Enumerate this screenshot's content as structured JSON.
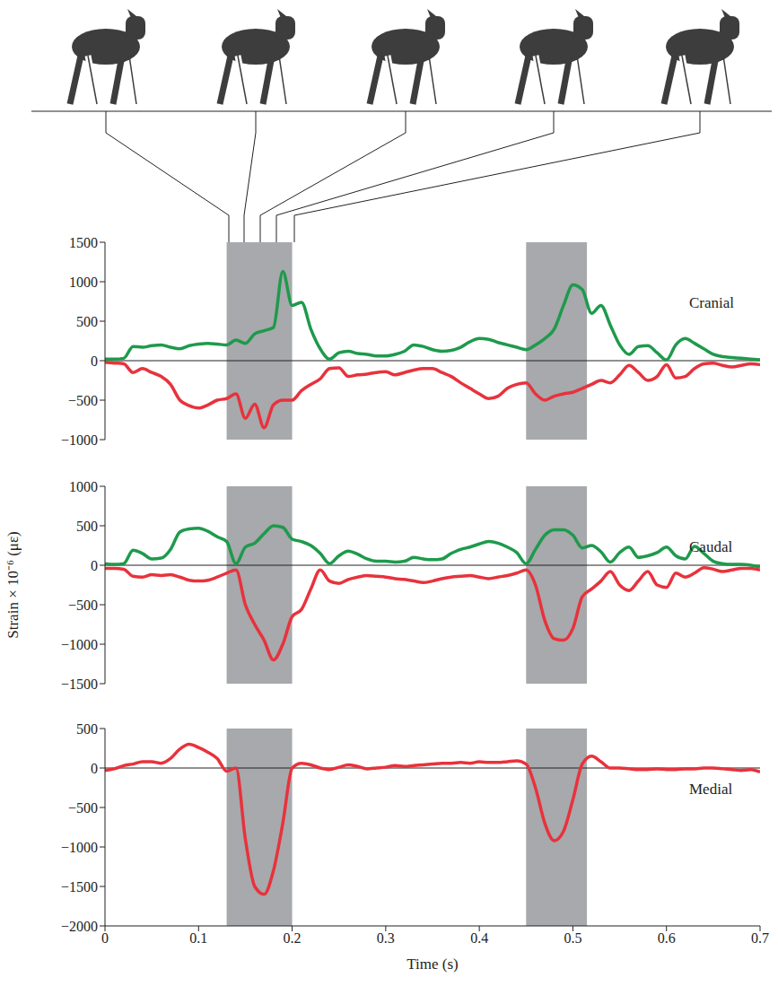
{
  "chart_data": [
    {
      "type": "line",
      "title": "Cranial",
      "baseline": 0,
      "xlim": [
        0,
        0.7
      ],
      "xticks": [
        0,
        0.1,
        0.2,
        0.3,
        0.4,
        0.5,
        0.6,
        0.7
      ],
      "ylim": [
        -1000,
        1500
      ],
      "yticks": [
        -1000,
        -500,
        0,
        500,
        1000,
        1500
      ],
      "tick_labels": "y",
      "shaded_regions": [
        [
          0.13,
          0.2
        ],
        [
          0.45,
          0.515
        ]
      ],
      "x": [
        0,
        0.01,
        0.02,
        0.03,
        0.04,
        0.05,
        0.06,
        0.07,
        0.08,
        0.09,
        0.1,
        0.11,
        0.12,
        0.13,
        0.14,
        0.15,
        0.16,
        0.17,
        0.18,
        0.19,
        0.2,
        0.21,
        0.22,
        0.23,
        0.24,
        0.25,
        0.26,
        0.27,
        0.28,
        0.29,
        0.3,
        0.31,
        0.32,
        0.33,
        0.34,
        0.35,
        0.36,
        0.37,
        0.38,
        0.39,
        0.4,
        0.41,
        0.42,
        0.43,
        0.44,
        0.45,
        0.46,
        0.47,
        0.48,
        0.49,
        0.5,
        0.51,
        0.52,
        0.53,
        0.54,
        0.55,
        0.56,
        0.57,
        0.58,
        0.59,
        0.6,
        0.61,
        0.62,
        0.63,
        0.64,
        0.65,
        0.66,
        0.67,
        0.68,
        0.69,
        0.7
      ],
      "series": [
        {
          "color": "#1e9a4c",
          "values": [
            20,
            20,
            30,
            180,
            170,
            190,
            200,
            170,
            150,
            190,
            210,
            220,
            210,
            200,
            260,
            220,
            340,
            380,
            420,
            1130,
            700,
            740,
            400,
            150,
            20,
            100,
            120,
            90,
            80,
            60,
            60,
            80,
            120,
            200,
            180,
            140,
            120,
            130,
            170,
            240,
            280,
            270,
            230,
            200,
            170,
            140,
            200,
            280,
            400,
            700,
            960,
            900,
            600,
            700,
            450,
            200,
            80,
            180,
            190,
            100,
            10,
            200,
            280,
            220,
            150,
            80,
            50,
            40,
            30,
            20,
            10
          ]
        },
        {
          "color": "#e8323c",
          "values": [
            -20,
            -30,
            -40,
            -150,
            -100,
            -150,
            -200,
            -300,
            -500,
            -570,
            -600,
            -560,
            -500,
            -480,
            -420,
            -730,
            -550,
            -850,
            -560,
            -500,
            -500,
            -380,
            -300,
            -230,
            -100,
            -90,
            -200,
            -180,
            -170,
            -150,
            -140,
            -180,
            -150,
            -120,
            -100,
            -100,
            -150,
            -200,
            -280,
            -350,
            -420,
            -480,
            -450,
            -350,
            -300,
            -280,
            -420,
            -500,
            -450,
            -420,
            -400,
            -350,
            -300,
            -250,
            -280,
            -180,
            -60,
            -150,
            -250,
            -200,
            -50,
            -220,
            -200,
            -100,
            -40,
            -30,
            -60,
            -80,
            -60,
            -40,
            -50
          ]
        }
      ]
    },
    {
      "type": "line",
      "title": "Caudal",
      "ylabel": "Strain × 10⁻⁶ (με)",
      "baseline": 0,
      "xlim": [
        0,
        0.7
      ],
      "xticks": [
        0,
        0.1,
        0.2,
        0.3,
        0.4,
        0.5,
        0.6,
        0.7
      ],
      "ylim": [
        -1500,
        1000
      ],
      "yticks": [
        -1500,
        -1000,
        -500,
        0,
        500,
        1000
      ],
      "tick_labels": "y",
      "shaded_regions": [
        [
          0.13,
          0.2
        ],
        [
          0.45,
          0.515
        ]
      ],
      "x": [
        0,
        0.01,
        0.02,
        0.03,
        0.04,
        0.05,
        0.06,
        0.07,
        0.08,
        0.09,
        0.1,
        0.11,
        0.12,
        0.13,
        0.14,
        0.15,
        0.16,
        0.17,
        0.18,
        0.19,
        0.2,
        0.21,
        0.22,
        0.23,
        0.24,
        0.25,
        0.26,
        0.27,
        0.28,
        0.29,
        0.3,
        0.31,
        0.32,
        0.33,
        0.34,
        0.35,
        0.36,
        0.37,
        0.38,
        0.39,
        0.4,
        0.41,
        0.42,
        0.43,
        0.44,
        0.45,
        0.46,
        0.47,
        0.48,
        0.49,
        0.5,
        0.51,
        0.52,
        0.53,
        0.54,
        0.55,
        0.56,
        0.57,
        0.58,
        0.59,
        0.6,
        0.61,
        0.62,
        0.63,
        0.64,
        0.65,
        0.66,
        0.67,
        0.68,
        0.69,
        0.7
      ],
      "series": [
        {
          "color": "#1e9a4c",
          "values": [
            20,
            10,
            20,
            190,
            150,
            80,
            90,
            200,
            420,
            460,
            470,
            430,
            360,
            300,
            20,
            230,
            280,
            400,
            500,
            480,
            330,
            300,
            250,
            150,
            20,
            120,
            180,
            140,
            80,
            50,
            50,
            40,
            50,
            100,
            80,
            70,
            80,
            150,
            200,
            230,
            270,
            300,
            280,
            230,
            160,
            20,
            200,
            380,
            450,
            450,
            380,
            220,
            250,
            170,
            40,
            160,
            230,
            100,
            120,
            160,
            230,
            120,
            80,
            240,
            150,
            50,
            20,
            10,
            10,
            0,
            -20
          ]
        },
        {
          "color": "#e8323c",
          "values": [
            -40,
            -40,
            -50,
            -140,
            -150,
            -120,
            -130,
            -120,
            -150,
            -190,
            -200,
            -190,
            -150,
            -100,
            -60,
            -500,
            -750,
            -950,
            -1200,
            -1000,
            -650,
            -560,
            -300,
            -60,
            -200,
            -230,
            -180,
            -150,
            -130,
            -140,
            -150,
            -170,
            -180,
            -200,
            -220,
            -200,
            -170,
            -150,
            -140,
            -130,
            -150,
            -170,
            -150,
            -130,
            -100,
            -60,
            -250,
            -700,
            -930,
            -950,
            -800,
            -400,
            -300,
            -200,
            -80,
            -250,
            -320,
            -200,
            -80,
            -250,
            -280,
            -100,
            -150,
            -100,
            -30,
            -50,
            -80,
            -60,
            -40,
            -40,
            -60
          ]
        }
      ]
    },
    {
      "type": "line",
      "title": "Medial",
      "xlabel": "Time (s)",
      "baseline": 0,
      "xlim": [
        0,
        0.7
      ],
      "xticks": [
        0,
        0.1,
        0.2,
        0.3,
        0.4,
        0.5,
        0.6,
        0.7
      ],
      "ylim": [
        -2000,
        500
      ],
      "yticks": [
        -2000,
        -1500,
        -1000,
        -500,
        0,
        500
      ],
      "shaded_regions": [
        [
          0.13,
          0.2
        ],
        [
          0.45,
          0.515
        ]
      ],
      "x": [
        0,
        0.01,
        0.02,
        0.03,
        0.04,
        0.05,
        0.06,
        0.07,
        0.08,
        0.09,
        0.1,
        0.11,
        0.12,
        0.13,
        0.14,
        0.15,
        0.16,
        0.17,
        0.18,
        0.19,
        0.2,
        0.21,
        0.22,
        0.23,
        0.24,
        0.25,
        0.26,
        0.27,
        0.28,
        0.29,
        0.3,
        0.31,
        0.32,
        0.33,
        0.34,
        0.35,
        0.36,
        0.37,
        0.38,
        0.39,
        0.4,
        0.41,
        0.42,
        0.43,
        0.44,
        0.45,
        0.46,
        0.47,
        0.48,
        0.49,
        0.5,
        0.51,
        0.52,
        0.53,
        0.54,
        0.55,
        0.56,
        0.57,
        0.58,
        0.59,
        0.6,
        0.61,
        0.62,
        0.63,
        0.64,
        0.65,
        0.66,
        0.67,
        0.68,
        0.69,
        0.7
      ],
      "series": [
        {
          "color": "#e8323c",
          "values": [
            -30,
            -10,
            30,
            50,
            80,
            80,
            60,
            120,
            240,
            300,
            260,
            200,
            120,
            -40,
            0,
            -900,
            -1500,
            -1600,
            -1300,
            -700,
            0,
            60,
            40,
            0,
            -20,
            10,
            40,
            20,
            -10,
            0,
            10,
            30,
            20,
            30,
            40,
            50,
            60,
            60,
            70,
            60,
            80,
            70,
            70,
            80,
            90,
            50,
            -250,
            -700,
            -920,
            -800,
            -400,
            50,
            150,
            80,
            0,
            0,
            -10,
            -20,
            -20,
            -10,
            -20,
            -20,
            -10,
            -10,
            0,
            0,
            -10,
            -20,
            -30,
            -20,
            -50
          ]
        }
      ]
    }
  ]
}
